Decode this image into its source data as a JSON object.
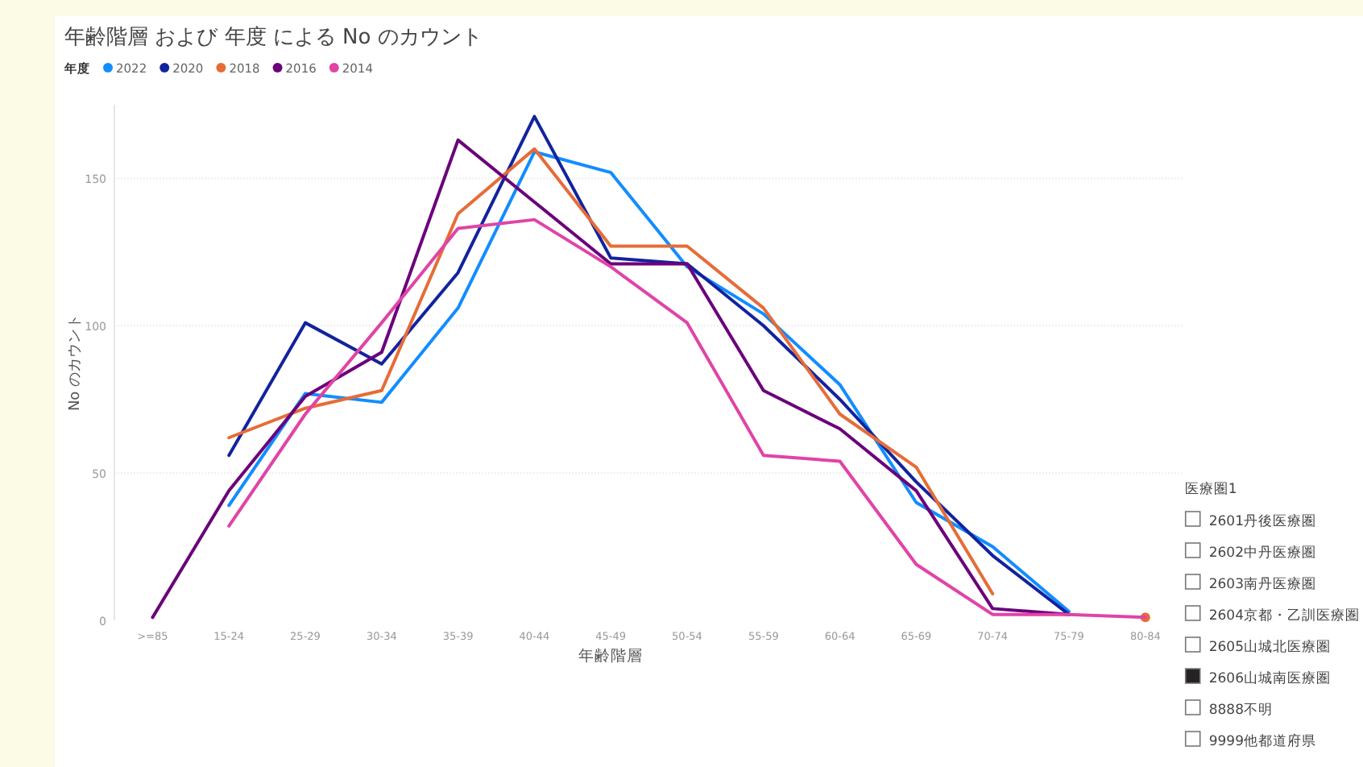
{
  "chart_data": [
    {
      "type": "line",
      "title": "年齢階層 および 年度 による No のカウント",
      "xlabel": "年齢階層",
      "ylabel": "No のカウント",
      "legend_title": "年度",
      "legend": "top left",
      "grid": "y",
      "marker": "none",
      "line_style": "solid",
      "categories": [
        ">=85",
        "15-24",
        "25-29",
        "30-34",
        "35-39",
        "40-44",
        "45-49",
        "50-54",
        "55-59",
        "60-64",
        "65-69",
        "70-74",
        "75-79",
        "80-84"
      ],
      "ylim": [
        0,
        175
      ],
      "yticks": [
        0,
        50,
        100,
        150
      ],
      "series": [
        {
          "name": "2022",
          "color": "#118dff",
          "values": [
            null,
            39,
            77,
            74,
            106,
            159,
            152,
            120,
            104,
            80,
            40,
            25,
            3,
            null
          ]
        },
        {
          "name": "2020",
          "color": "#12239e",
          "values": [
            null,
            56,
            101,
            87,
            118,
            171,
            123,
            121,
            100,
            75,
            47,
            22,
            2,
            null
          ]
        },
        {
          "name": "2018",
          "color": "#e66c37",
          "values": [
            null,
            62,
            72,
            78,
            138,
            160,
            127,
            127,
            106,
            70,
            52,
            9,
            null,
            1
          ]
        },
        {
          "name": "2016",
          "color": "#6b007b",
          "values": [
            1,
            44,
            76,
            91,
            163,
            142,
            121,
            121,
            78,
            65,
            44,
            4,
            2,
            null
          ]
        },
        {
          "name": "2014",
          "color": "#e044a7",
          "values": [
            null,
            32,
            70,
            101,
            133,
            136,
            120,
            101,
            56,
            54,
            19,
            2,
            2,
            1
          ]
        }
      ]
    },
    {
      "type": "other",
      "title": "医療圏1",
      "categories": [
        "2601丹後医療圏",
        "2602中丹医療圏",
        "2603南丹医療圏",
        "2604京都・乙訓医療圏",
        "2605山城北医療圏",
        "2606山城南医療圏",
        "8888不明",
        "9999他都道府県"
      ],
      "colors": [
        "#ffffff",
        "#ffffff",
        "#ffffff",
        "#ffffff",
        "#ffffff",
        "#252423",
        "#ffffff",
        "#ffffff"
      ]
    }
  ]
}
